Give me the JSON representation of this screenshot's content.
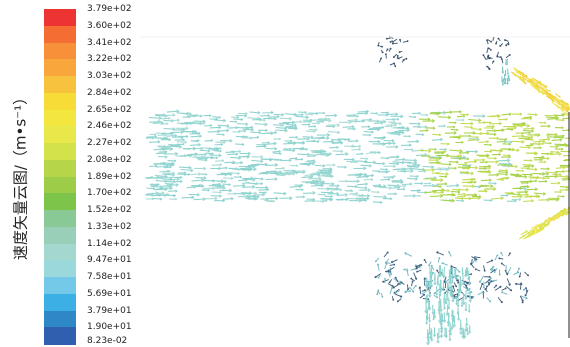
{
  "axis_label": "速度矢量云图/（m•s⁻¹）",
  "colorbar": {
    "levels": [
      "3.79e+02",
      "3.60e+02",
      "3.41e+02",
      "3.22e+02",
      "3.03e+02",
      "2.84e+02",
      "2.65e+02",
      "2.46e+02",
      "2.27e+02",
      "2.08e+02",
      "1.89e+02",
      "1.70e+02",
      "1.52e+02",
      "1.33e+02",
      "1.14e+02",
      "9.47e+01",
      "7.58e+01",
      "5.69e+01",
      "3.79e+01",
      "1.90e+01",
      "8.23e-02"
    ],
    "colors": [
      "#ee3333",
      "#f46e33",
      "#f6913a",
      "#f9a63d",
      "#f7c23d",
      "#f7db36",
      "#f3e63f",
      "#e9e84a",
      "#d3e14a",
      "#b7d548",
      "#9dcd48",
      "#7cc44a",
      "#88c995",
      "#99cfb8",
      "#a4d7ce",
      "#9bd8dc",
      "#74c9e8",
      "#3cb0e4",
      "#2e88c8",
      "#2f5fae"
    ]
  }
}
